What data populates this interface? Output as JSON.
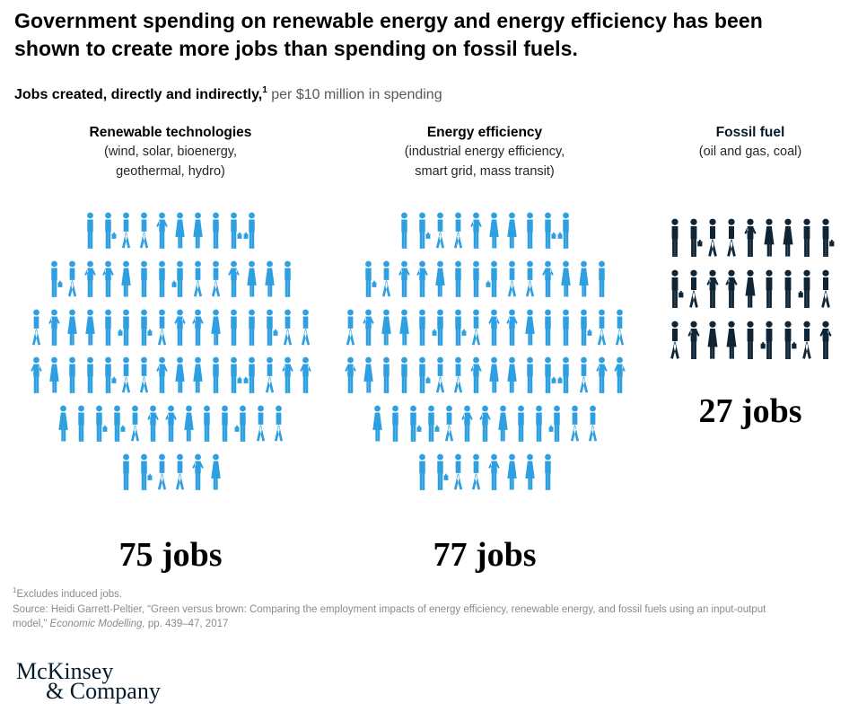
{
  "header": {
    "title": "Government spending on renewable energy and energy efficiency has been shown to create more jobs than spending on fossil fuels.",
    "title_lines": [
      "Government spending on renewable energy and energy efficiency has been",
      "shown to create more jobs than spending on fossil fuels."
    ]
  },
  "subtitle": {
    "bold": "Jobs created, directly and indirectly,",
    "superscript": "1",
    "rest": " per $10 million in spending"
  },
  "columns": [
    {
      "id": "renewable",
      "title": "Renewable technologies",
      "title_color": "#000000",
      "subtitle_lines": [
        "(wind, solar, bioenergy,",
        "geothermal, hydro)"
      ],
      "jobs": 75,
      "jobs_label": "75 jobs",
      "color": "#2E9FE0",
      "figure_rows": [
        10,
        14,
        16,
        16,
        13,
        6
      ]
    },
    {
      "id": "efficiency",
      "title": "Energy efficiency",
      "title_color": "#000000",
      "subtitle_lines": [
        "(industrial energy efficiency,",
        "smart grid, mass transit)"
      ],
      "jobs": 77,
      "jobs_label": "77 jobs",
      "color": "#2E9FE0",
      "figure_rows": [
        10,
        14,
        16,
        16,
        13,
        8
      ]
    },
    {
      "id": "fossil",
      "title": "Fossil fuel",
      "title_color": "#051C2C",
      "subtitle_lines": [
        "(oil and gas, coal)"
      ],
      "jobs": 27,
      "jobs_label": "27 jobs",
      "color": "#0F2536",
      "figure_rows": [
        9,
        9,
        9
      ]
    }
  ],
  "footnotes": {
    "note_superscript": "1",
    "note": "Excludes induced jobs.",
    "source_prefix": "Source: Heidi Garrett-Peltier, “Green versus brown: Comparing the employment impacts of energy efficiency, renewable energy, and fossil fuels using an input-output model,” ",
    "source_italic": "Economic Modelling,",
    "source_suffix": "  pp. 439–47, 2017"
  },
  "logo": {
    "line1": "McKinsey",
    "line2": "& Company"
  },
  "chart_data": {
    "type": "bar",
    "variant": "pictogram",
    "title": "Government spending on renewable energy and energy efficiency has been shown to create more jobs than spending on fossil fuels.",
    "subtitle": "Jobs created, directly and indirectly, per $10 million in spending",
    "categories": [
      "Renewable technologies (wind, solar, bioenergy, geothermal, hydro)",
      "Energy efficiency (industrial energy efficiency, smart grid, mass transit)",
      "Fossil fuel (oil and gas, coal)"
    ],
    "values": [
      75,
      77,
      27
    ],
    "unit": "jobs per $10 million in spending",
    "colors": [
      "#2E9FE0",
      "#2E9FE0",
      "#0F2536"
    ],
    "data_labels": [
      "75 jobs",
      "77 jobs",
      "27 jobs"
    ]
  }
}
